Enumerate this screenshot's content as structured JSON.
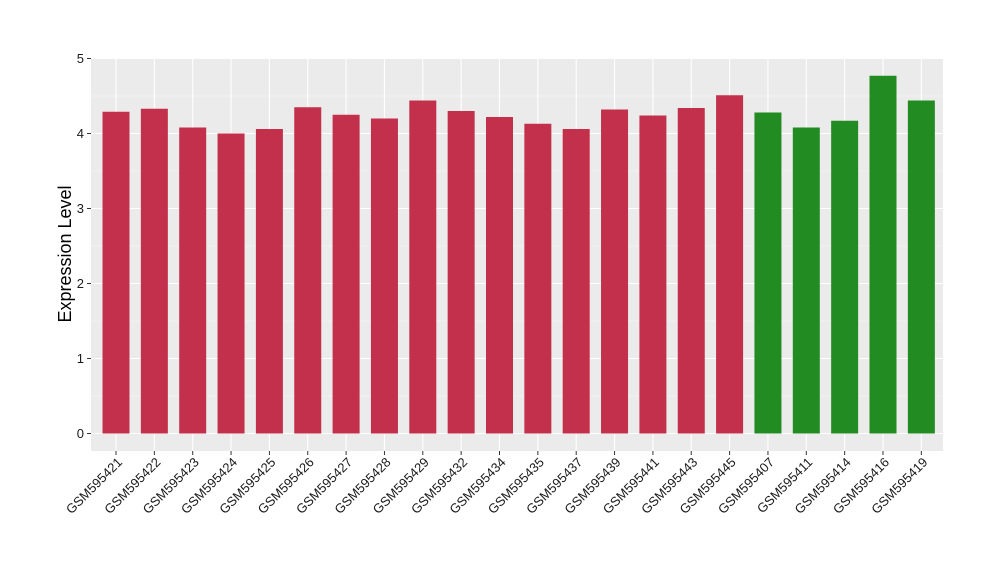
{
  "chart_data": {
    "type": "bar",
    "title": "",
    "xlabel": "",
    "ylabel": "Expression Level",
    "ylim": [
      0,
      5
    ],
    "yticks": [
      0,
      1,
      2,
      3,
      4,
      5
    ],
    "grid": true,
    "colors": {
      "group_a": "#c3304b",
      "group_b": "#228b22",
      "panel_bg": "#ebebeb",
      "grid_major": "#ffffff"
    },
    "categories": [
      "GSM595421",
      "GSM595422",
      "GSM595423",
      "GSM595424",
      "GSM595425",
      "GSM595426",
      "GSM595427",
      "GSM595428",
      "GSM595429",
      "GSM595432",
      "GSM595434",
      "GSM595435",
      "GSM595437",
      "GSM595439",
      "GSM595441",
      "GSM595443",
      "GSM595445",
      "GSM595407",
      "GSM595411",
      "GSM595414",
      "GSM595416",
      "GSM595419"
    ],
    "values": [
      4.29,
      4.33,
      4.08,
      4.0,
      4.06,
      4.35,
      4.25,
      4.2,
      4.44,
      4.3,
      4.22,
      4.13,
      4.06,
      4.32,
      4.24,
      4.34,
      4.51,
      4.28,
      4.08,
      4.17,
      4.77,
      4.44
    ],
    "bar_groups": [
      "a",
      "a",
      "a",
      "a",
      "a",
      "a",
      "a",
      "a",
      "a",
      "a",
      "a",
      "a",
      "a",
      "a",
      "a",
      "a",
      "a",
      "b",
      "b",
      "b",
      "b",
      "b"
    ]
  }
}
